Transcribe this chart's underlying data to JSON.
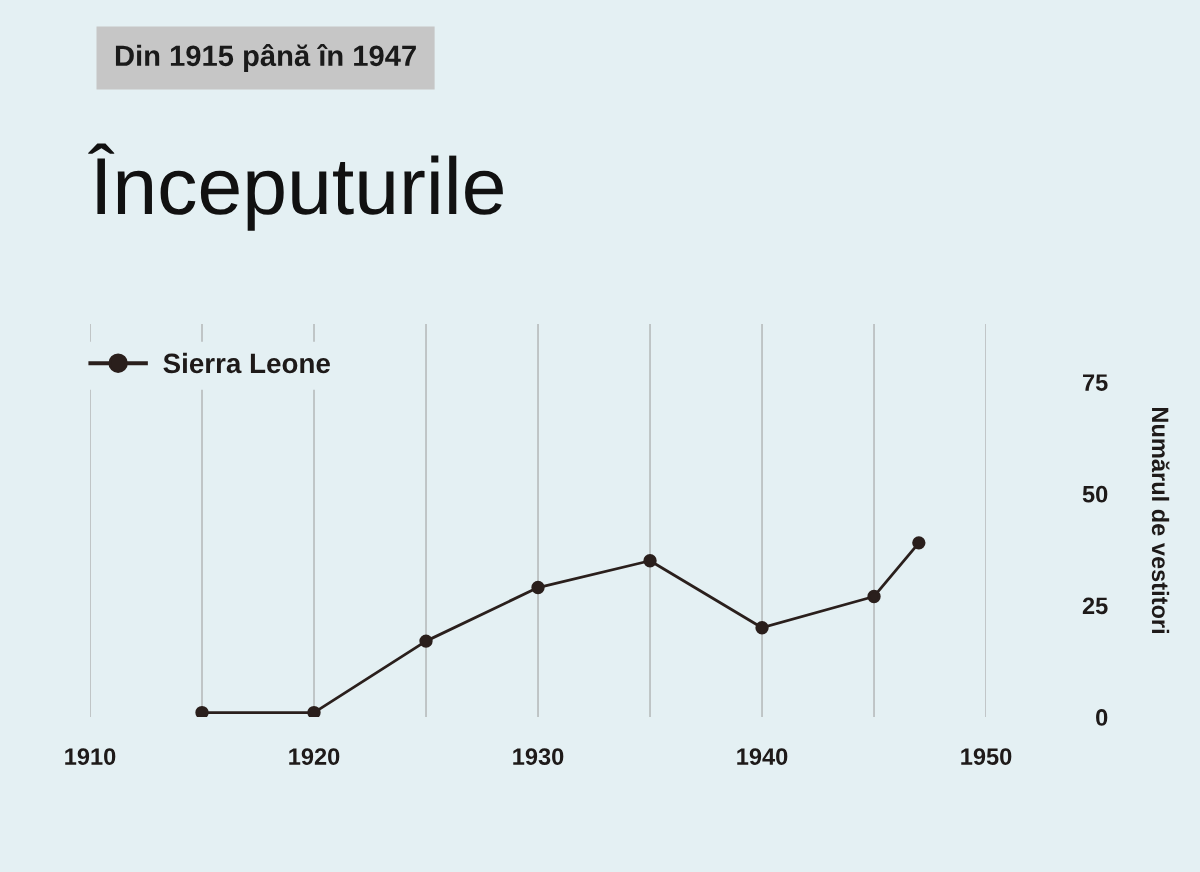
{
  "chart_data": {
    "type": "line",
    "title": "Începuturile",
    "subtitle": "Din 1915 până în 1947",
    "ylabel": "Numărul de vestitori",
    "x": [
      1915,
      1920,
      1925,
      1930,
      1935,
      1940,
      1945,
      1947
    ],
    "series": [
      {
        "name": "Sierra Leone",
        "color": "#2a1f1c",
        "values": [
          1,
          1,
          17,
          29,
          35,
          20,
          27,
          39
        ]
      }
    ],
    "xlim": [
      1910,
      1950
    ],
    "xticks": [
      1910,
      {
        "value": 1915,
        "label": null
      },
      1920,
      {
        "value": 1925,
        "label": null
      },
      1930,
      {
        "value": 1935,
        "label": null
      },
      1940,
      {
        "value": 1945,
        "label": null
      },
      1950
    ],
    "ylim": [
      0,
      88
    ],
    "yticks": [
      0,
      25,
      50,
      75
    ],
    "grid": "x",
    "legend": "top left",
    "marker": "circle",
    "line_style": "solid"
  }
}
